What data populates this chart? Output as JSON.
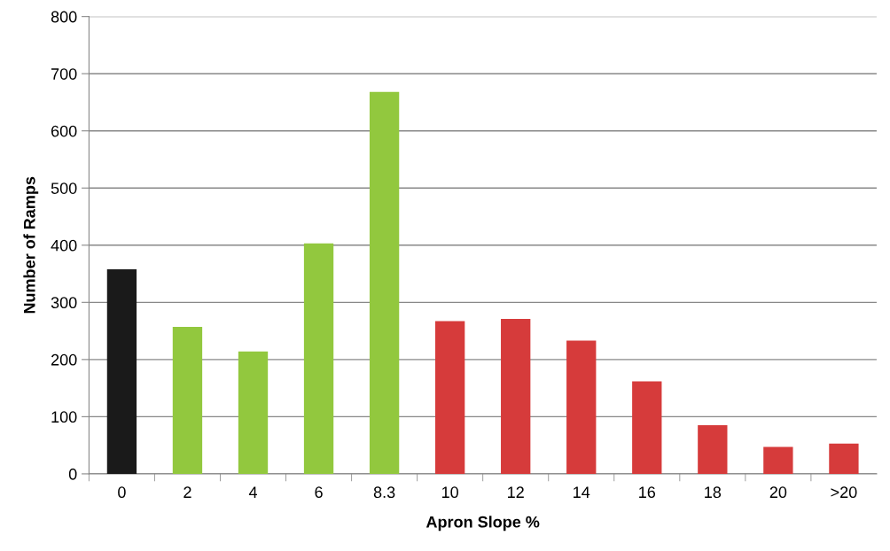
{
  "chart_data": {
    "type": "bar",
    "xlabel": "Apron Slope %",
    "ylabel": "Number of Ramps",
    "categories": [
      "0",
      "2",
      "4",
      "6",
      "8.3",
      "10",
      "12",
      "14",
      "16",
      "18",
      "20",
      ">20"
    ],
    "values": [
      358,
      257,
      214,
      403,
      668,
      267,
      271,
      233,
      162,
      85,
      47,
      53
    ],
    "colors": [
      "#1a1a1a",
      "#92c83e",
      "#92c83e",
      "#92c83e",
      "#92c83e",
      "#d63b3b",
      "#d63b3b",
      "#d63b3b",
      "#d63b3b",
      "#d63b3b",
      "#d63b3b",
      "#d63b3b"
    ],
    "ylim": [
      0,
      800
    ],
    "yticks": [
      0,
      100,
      200,
      300,
      400,
      500,
      600,
      700,
      800
    ],
    "grid": "y",
    "legend": false
  }
}
